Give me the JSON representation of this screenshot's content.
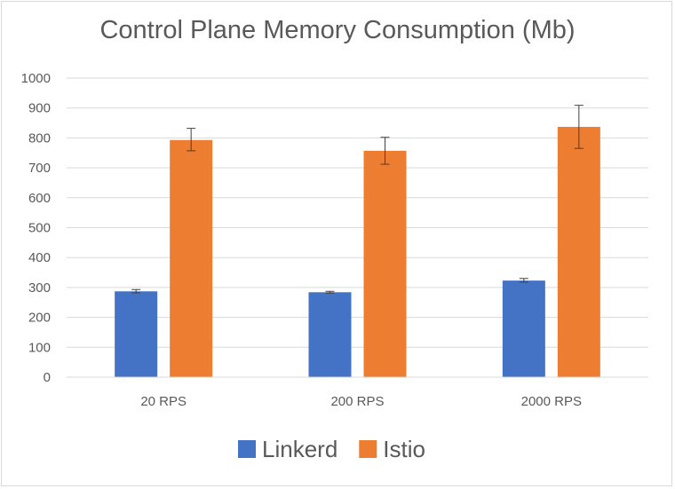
{
  "chart_data": {
    "type": "bar",
    "title": "Control Plane Memory Consumption (Mb)",
    "xlabel": "",
    "ylabel": "",
    "categories": [
      "20 RPS",
      "200 RPS",
      "2000 RPS"
    ],
    "ylim": [
      0,
      1000
    ],
    "yticks": [
      0,
      100,
      200,
      300,
      400,
      500,
      600,
      700,
      800,
      900,
      1000
    ],
    "grid": true,
    "legend_position": "bottom",
    "series": [
      {
        "name": "Linkerd",
        "color": "#4472c4",
        "values": [
          287,
          284,
          323
        ],
        "error_low": [
          282,
          281,
          318
        ],
        "error_high": [
          293,
          287,
          330
        ]
      },
      {
        "name": "Istio",
        "color": "#ed7d31",
        "values": [
          793,
          757,
          837
        ],
        "error_low": [
          757,
          712,
          765
        ],
        "error_high": [
          832,
          802,
          909
        ]
      }
    ]
  }
}
